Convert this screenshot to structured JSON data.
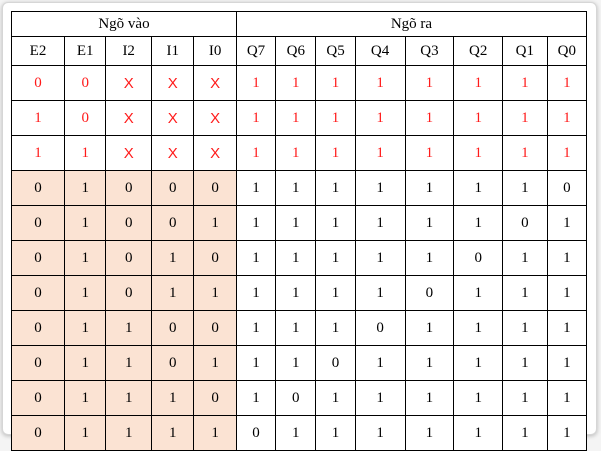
{
  "header": {
    "inputs_label": "Ngõ vào",
    "outputs_label": "Ngõ ra"
  },
  "columns": [
    "E2",
    "E1",
    "I2",
    "I1",
    "I0",
    "Q7",
    "Q6",
    "Q5",
    "Q4",
    "Q3",
    "Q2",
    "Q1",
    "Q0"
  ],
  "input_count": 5,
  "colors": {
    "input_fill": "#fbe3d3",
    "special_text": "#ff1a1a",
    "border": "#000000"
  },
  "rows": [
    {
      "special": true,
      "cells": [
        "0",
        "0",
        "X",
        "X",
        "X",
        "1",
        "1",
        "1",
        "1",
        "1",
        "1",
        "1",
        "1"
      ]
    },
    {
      "special": true,
      "cells": [
        "1",
        "0",
        "X",
        "X",
        "X",
        "1",
        "1",
        "1",
        "1",
        "1",
        "1",
        "1",
        "1"
      ]
    },
    {
      "special": true,
      "cells": [
        "1",
        "1",
        "X",
        "X",
        "X",
        "1",
        "1",
        "1",
        "1",
        "1",
        "1",
        "1",
        "1"
      ]
    },
    {
      "special": false,
      "cells": [
        "0",
        "1",
        "0",
        "0",
        "0",
        "1",
        "1",
        "1",
        "1",
        "1",
        "1",
        "1",
        "0"
      ]
    },
    {
      "special": false,
      "cells": [
        "0",
        "1",
        "0",
        "0",
        "1",
        "1",
        "1",
        "1",
        "1",
        "1",
        "1",
        "0",
        "1"
      ]
    },
    {
      "special": false,
      "cells": [
        "0",
        "1",
        "0",
        "1",
        "0",
        "1",
        "1",
        "1",
        "1",
        "1",
        "0",
        "1",
        "1"
      ]
    },
    {
      "special": false,
      "cells": [
        "0",
        "1",
        "0",
        "1",
        "1",
        "1",
        "1",
        "1",
        "1",
        "0",
        "1",
        "1",
        "1"
      ]
    },
    {
      "special": false,
      "cells": [
        "0",
        "1",
        "1",
        "0",
        "0",
        "1",
        "1",
        "1",
        "0",
        "1",
        "1",
        "1",
        "1"
      ]
    },
    {
      "special": false,
      "cells": [
        "0",
        "1",
        "1",
        "0",
        "1",
        "1",
        "1",
        "0",
        "1",
        "1",
        "1",
        "1",
        "1"
      ]
    },
    {
      "special": false,
      "cells": [
        "0",
        "1",
        "1",
        "1",
        "0",
        "1",
        "0",
        "1",
        "1",
        "1",
        "1",
        "1",
        "1"
      ]
    },
    {
      "special": false,
      "cells": [
        "0",
        "1",
        "1",
        "1",
        "1",
        "0",
        "1",
        "1",
        "1",
        "1",
        "1",
        "1",
        "1"
      ]
    }
  ]
}
